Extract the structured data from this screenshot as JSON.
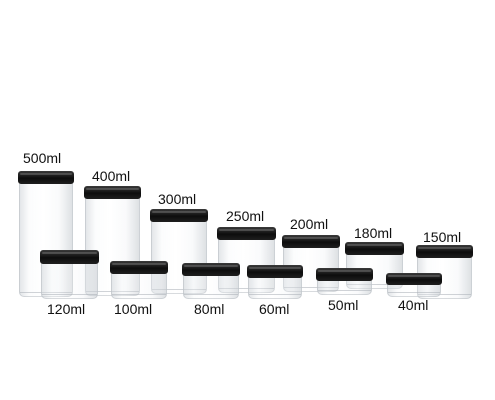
{
  "jars": [
    {
      "id": "500",
      "label": "500ml"
    },
    {
      "id": "400",
      "label": "400ml"
    },
    {
      "id": "300",
      "label": "300ml"
    },
    {
      "id": "250",
      "label": "250ml"
    },
    {
      "id": "200",
      "label": "200ml"
    },
    {
      "id": "180",
      "label": "180ml"
    },
    {
      "id": "150",
      "label": "150ml"
    },
    {
      "id": "120",
      "label": "120ml"
    },
    {
      "id": "100",
      "label": "100ml"
    },
    {
      "id": "80",
      "label": "80ml"
    },
    {
      "id": "60",
      "label": "60ml"
    },
    {
      "id": "50",
      "label": "50ml"
    },
    {
      "id": "40",
      "label": "40ml"
    }
  ]
}
